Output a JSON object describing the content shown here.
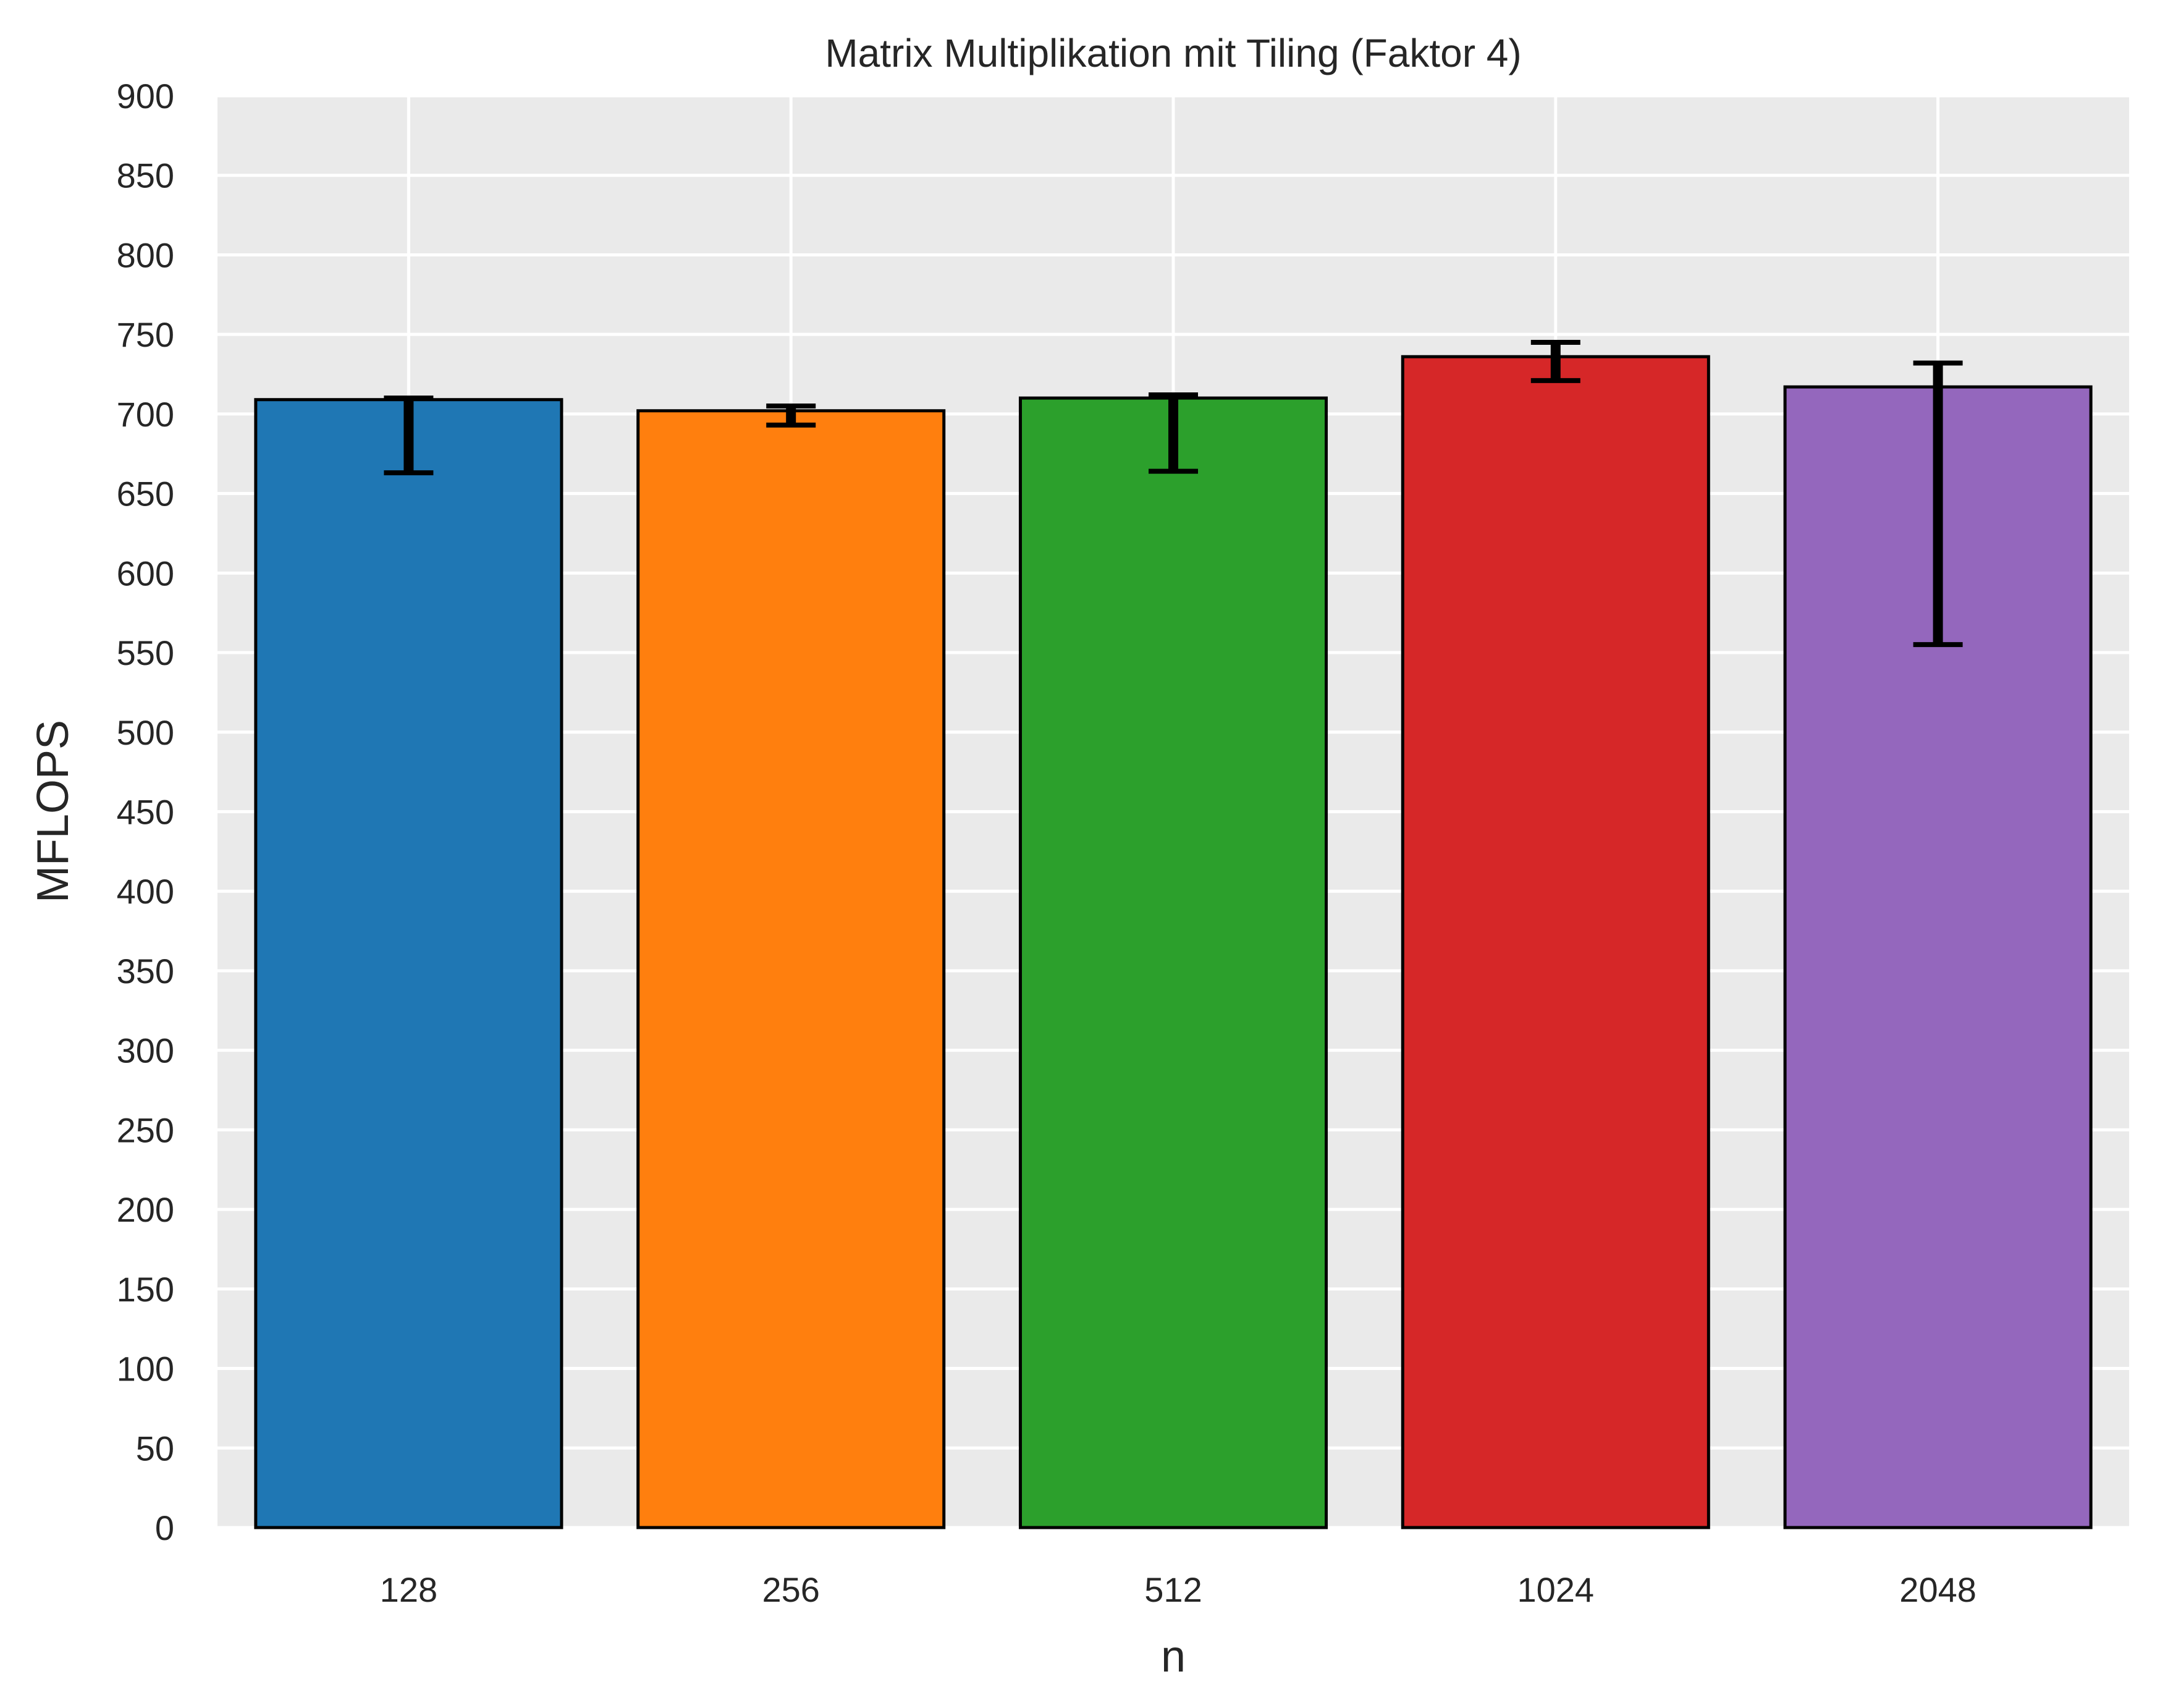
{
  "chart_data": {
    "type": "bar",
    "title": "Matrix Multiplikation mit Tiling (Faktor 4)",
    "xlabel": "n",
    "ylabel": "MFLOPS",
    "categories": [
      "128",
      "256",
      "512",
      "1024",
      "2048"
    ],
    "values": [
      709,
      702,
      710,
      736,
      717
    ],
    "error_low": [
      663,
      693,
      664,
      721,
      555
    ],
    "error_high": [
      710,
      705,
      712,
      745,
      732
    ],
    "colors": [
      "#1f77b4",
      "#ff7f0e",
      "#2ca02c",
      "#d62728",
      "#9467bd"
    ],
    "ylim": [
      0,
      900
    ],
    "yticks": [
      0,
      50,
      100,
      150,
      200,
      250,
      300,
      350,
      400,
      450,
      500,
      550,
      600,
      650,
      700,
      750,
      800,
      850,
      900
    ],
    "grid": true,
    "background": "#eaeaea",
    "legend": "none"
  }
}
